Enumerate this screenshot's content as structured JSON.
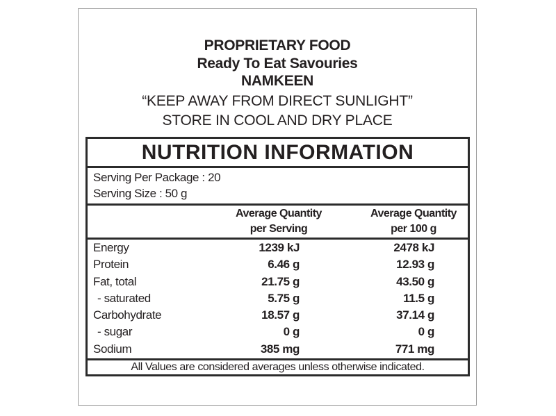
{
  "header": {
    "line1": "PROPRIETARY FOOD",
    "line2": "Ready To Eat Savouries",
    "line3": "NAMKEEN",
    "line4": "“KEEP AWAY FROM DIRECT SUNLIGHT”",
    "line5": "STORE IN COOL AND DRY PLACE"
  },
  "nutrition": {
    "title": "NUTRITION INFORMATION",
    "serving_per_package": "Serving Per Package : 20",
    "serving_size": "Serving Size : 50 g",
    "col1": {
      "line1": "Average Quantity",
      "line2": "per Serving"
    },
    "col2": {
      "line1": "Average Quantity",
      "line2": "per 100 g"
    },
    "rows": [
      {
        "label": "Energy",
        "per_serving": "1239 kJ",
        "per_100g": "2478 kJ"
      },
      {
        "label": "Protein",
        "per_serving": "6.46 g",
        "per_100g": "12.93 g"
      },
      {
        "label": "Fat, total",
        "per_serving": "21.75 g",
        "per_100g": "43.50 g"
      },
      {
        "label": "  - saturated",
        "per_serving": "5.75 g",
        "per_100g": "11.5 g"
      },
      {
        "label": "Carbohydrate",
        "per_serving": "18.57 g",
        "per_100g": "37.14 g"
      },
      {
        "label": "  - sugar",
        "per_serving": "0 g",
        "per_100g": "0 g"
      },
      {
        "label": "Sodium",
        "per_serving": "385 mg",
        "per_100g": "771 mg"
      }
    ],
    "footnote": "All Values are considered averages unless otherwise indicated."
  }
}
